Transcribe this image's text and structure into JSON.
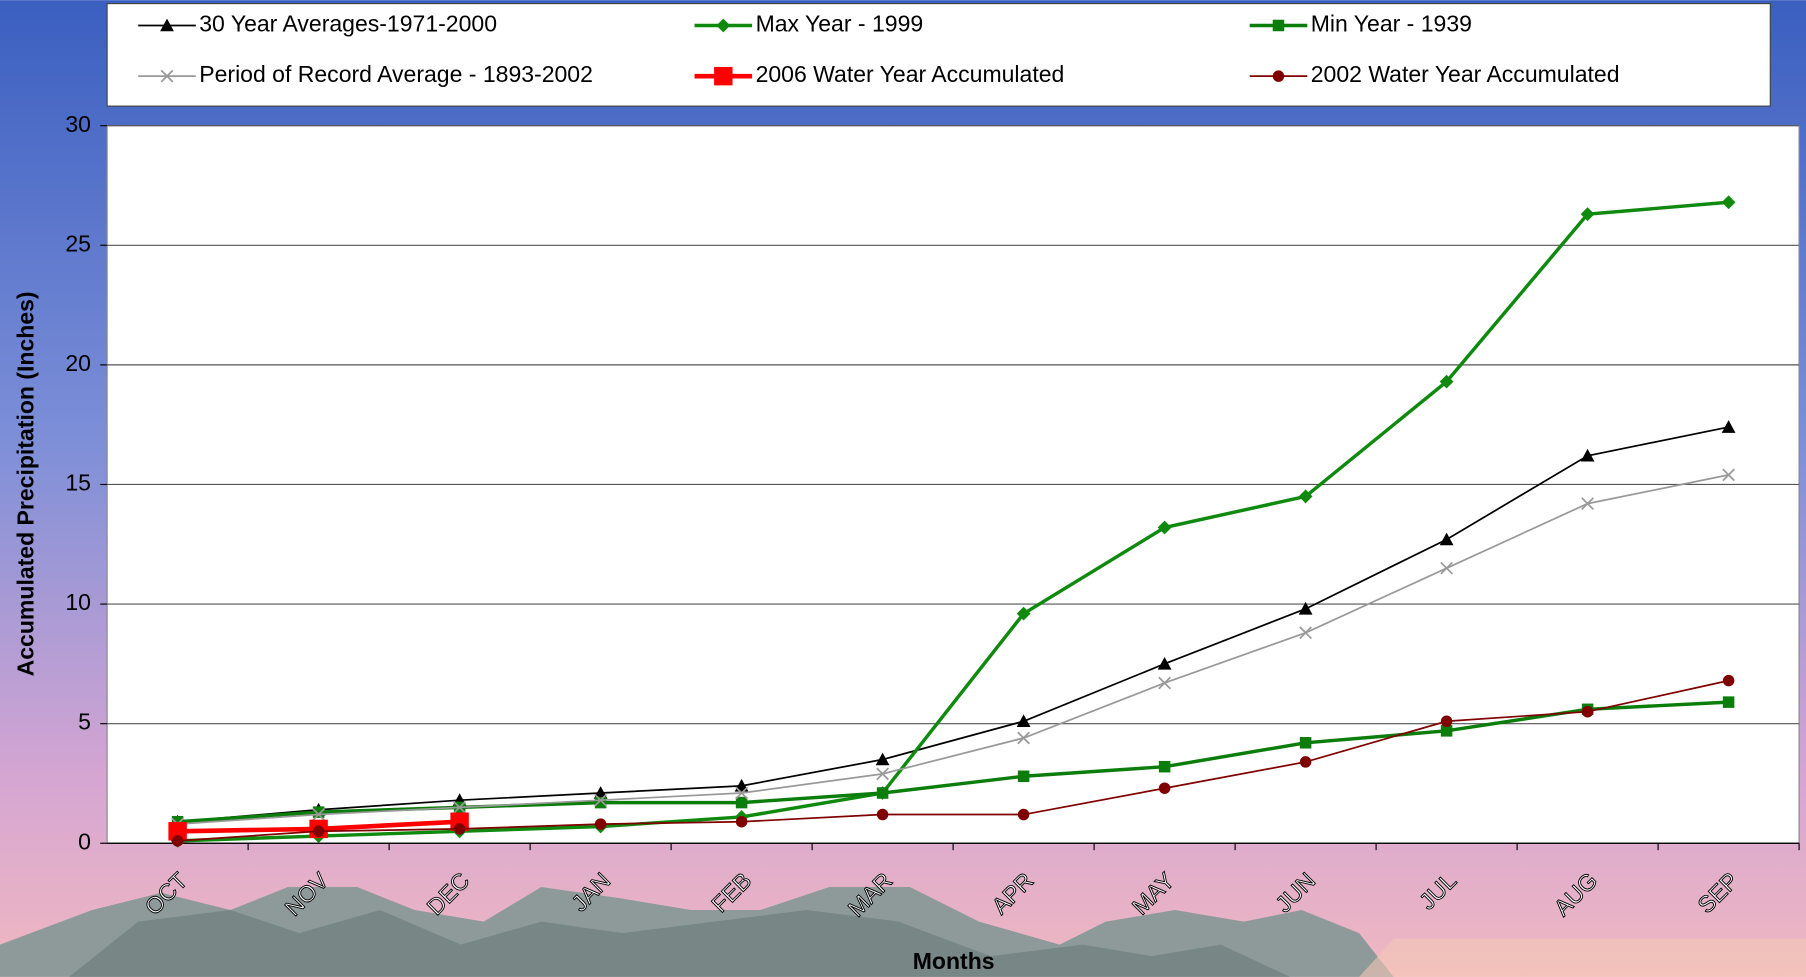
{
  "chart_data": {
    "type": "line",
    "x_label": "Months",
    "y_label": "Accumulated Precipitation (Inches)",
    "categories": [
      "OCT",
      "NOV",
      "DEC",
      "JAN",
      "FEB",
      "MAR",
      "APR",
      "MAY",
      "JUN",
      "JUL",
      "AUG",
      "SEP"
    ],
    "ylim": [
      0,
      30
    ],
    "yticks": [
      0,
      5,
      10,
      15,
      20,
      25,
      30
    ],
    "grid": true,
    "legend": "top",
    "series": [
      {
        "name": "30 Year Averages-1971-2000",
        "color": "#000000",
        "marker": "triangle",
        "line_width": 1.5,
        "values": [
          0.9,
          1.4,
          1.8,
          2.1,
          2.4,
          3.5,
          5.1,
          7.5,
          9.8,
          12.7,
          16.2,
          17.4
        ]
      },
      {
        "name": "Max Year - 1999",
        "color": "#0f8a0f",
        "marker": "diamond",
        "line_width": 3,
        "values": [
          0.1,
          0.3,
          0.5,
          0.7,
          1.1,
          2.1,
          9.6,
          13.2,
          14.5,
          19.3,
          26.3,
          26.8
        ]
      },
      {
        "name": "Min Year - 1939",
        "color": "#0b7d0b",
        "marker": "square",
        "line_width": 3,
        "values": [
          0.9,
          1.3,
          1.5,
          1.7,
          1.7,
          2.1,
          2.8,
          3.2,
          4.2,
          4.7,
          5.6,
          5.9
        ]
      },
      {
        "name": "Period of Record Average - 1893-2002",
        "color": "#999999",
        "marker": "x",
        "line_width": 1.5,
        "values": [
          0.8,
          1.2,
          1.5,
          1.8,
          2.1,
          2.9,
          4.4,
          6.7,
          8.8,
          11.5,
          14.2,
          15.4
        ]
      },
      {
        "name": "2006 Water Year Accumulated",
        "color": "#ff0000",
        "marker": "bigsquare",
        "line_width": 4,
        "values": [
          0.5,
          0.6,
          0.9,
          null,
          null,
          null,
          null,
          null,
          null,
          null,
          null,
          null
        ]
      },
      {
        "name": "2002 Water Year Accumulated",
        "color": "#800000",
        "marker": "circle",
        "line_width": 1.5,
        "values": [
          0.1,
          0.5,
          0.6,
          0.8,
          0.9,
          1.2,
          1.2,
          2.3,
          3.4,
          5.1,
          5.5,
          6.8
        ]
      }
    ]
  }
}
